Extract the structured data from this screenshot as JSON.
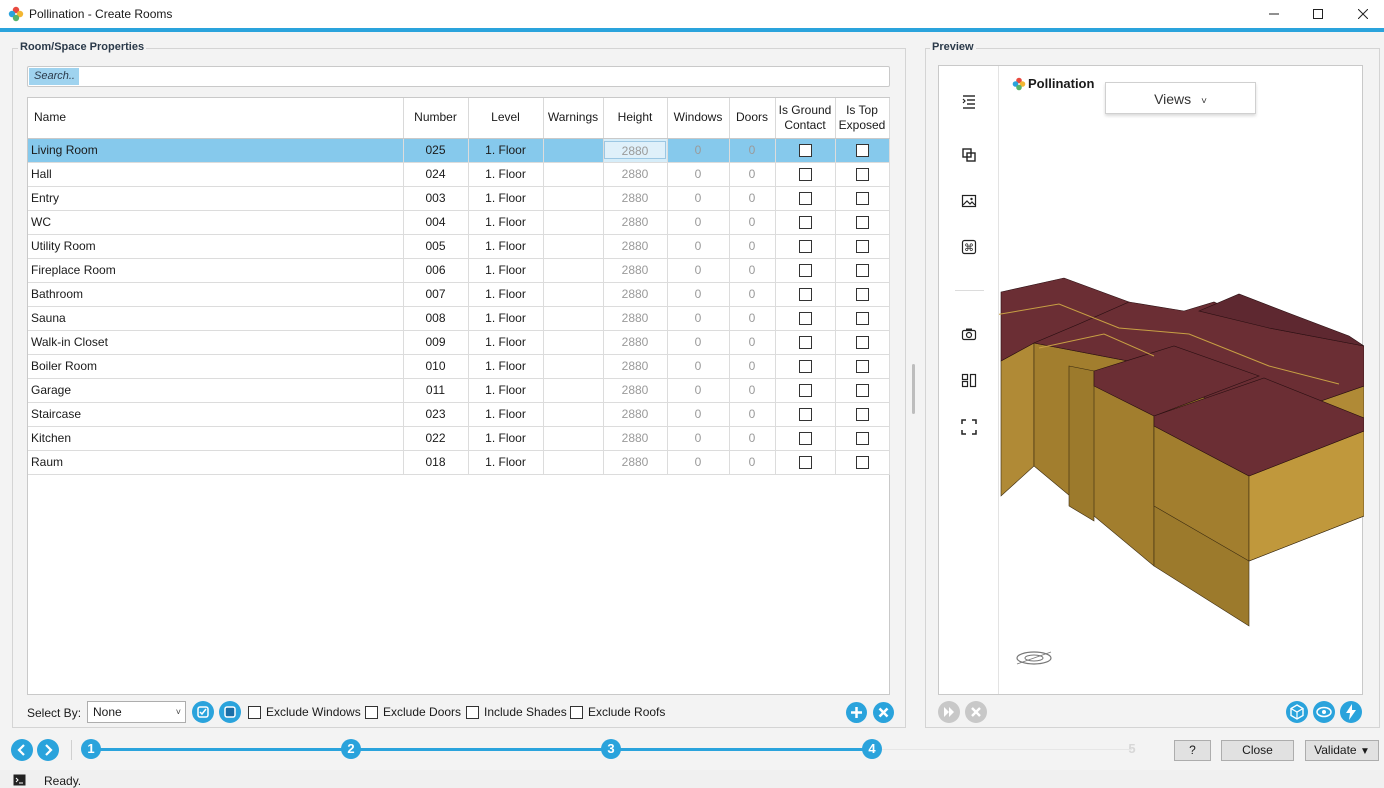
{
  "window": {
    "title": "Pollination - Create Rooms"
  },
  "left_panel": {
    "group_label": "Room/Space Properties",
    "search_placeholder": "Search..",
    "columns": [
      "Name",
      "Number",
      "Level",
      "Warnings",
      "Height",
      "Windows",
      "Doors",
      "Is Ground Contact",
      "Is Top Exposed"
    ],
    "column_lines": [
      [
        "Is Ground",
        "Contact"
      ],
      [
        "Is Top",
        "Exposed"
      ]
    ],
    "rows": [
      {
        "name": "Living Room",
        "number": "025",
        "level": "1. Floor",
        "warnings": "",
        "height": "2880",
        "windows": "0",
        "doors": "0"
      },
      {
        "name": "Hall",
        "number": "024",
        "level": "1. Floor",
        "warnings": "",
        "height": "2880",
        "windows": "0",
        "doors": "0"
      },
      {
        "name": "Entry",
        "number": "003",
        "level": "1. Floor",
        "warnings": "",
        "height": "2880",
        "windows": "0",
        "doors": "0"
      },
      {
        "name": "WC",
        "number": "004",
        "level": "1. Floor",
        "warnings": "",
        "height": "2880",
        "windows": "0",
        "doors": "0"
      },
      {
        "name": "Utility Room",
        "number": "005",
        "level": "1. Floor",
        "warnings": "",
        "height": "2880",
        "windows": "0",
        "doors": "0"
      },
      {
        "name": "Fireplace Room",
        "number": "006",
        "level": "1. Floor",
        "warnings": "",
        "height": "2880",
        "windows": "0",
        "doors": "0"
      },
      {
        "name": "Bathroom",
        "number": "007",
        "level": "1. Floor",
        "warnings": "",
        "height": "2880",
        "windows": "0",
        "doors": "0"
      },
      {
        "name": "Sauna",
        "number": "008",
        "level": "1. Floor",
        "warnings": "",
        "height": "2880",
        "windows": "0",
        "doors": "0"
      },
      {
        "name": "Walk-in Closet",
        "number": "009",
        "level": "1. Floor",
        "warnings": "",
        "height": "2880",
        "windows": "0",
        "doors": "0"
      },
      {
        "name": "Boiler Room",
        "number": "010",
        "level": "1. Floor",
        "warnings": "",
        "height": "2880",
        "windows": "0",
        "doors": "0"
      },
      {
        "name": "Garage",
        "number": "011",
        "level": "1. Floor",
        "warnings": "",
        "height": "2880",
        "windows": "0",
        "doors": "0"
      },
      {
        "name": "Staircase",
        "number": "023",
        "level": "1. Floor",
        "warnings": "",
        "height": "2880",
        "windows": "0",
        "doors": "0"
      },
      {
        "name": "Kitchen",
        "number": "022",
        "level": "1. Floor",
        "warnings": "",
        "height": "2880",
        "windows": "0",
        "doors": "0"
      },
      {
        "name": "Raum",
        "number": "018",
        "level": "1. Floor",
        "warnings": "",
        "height": "2880",
        "windows": "0",
        "doors": "0"
      }
    ],
    "select_by_label": "Select By:",
    "select_by_value": "None",
    "checkboxes": [
      "Exclude Windows",
      "Exclude Doors",
      "Include Shades",
      "Exclude Roofs"
    ]
  },
  "preview": {
    "group_label": "Preview",
    "brand": "Pollination",
    "views_label": "Views",
    "roof_color": "#6b2e34",
    "wall_color": "#b08a36"
  },
  "wizard": {
    "steps": [
      "1",
      "2",
      "3",
      "4",
      "5"
    ],
    "active_steps": 4
  },
  "buttons": {
    "help": "?",
    "close": "Close",
    "validate": "Validate"
  },
  "status": {
    "text": "Ready."
  },
  "colors": {
    "accent": "#2aa3dc",
    "selected_row": "#86c9ec"
  }
}
